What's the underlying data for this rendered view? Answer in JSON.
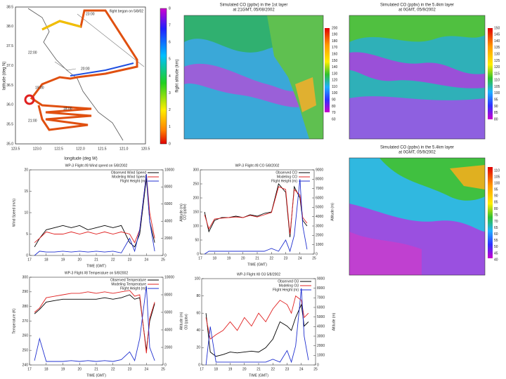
{
  "flight_map": {
    "note": "flight began on 5/8/02",
    "xlabel": "longitude (deg W)",
    "ylabel": "latitude (deg N)",
    "colorbar_label": "flight altitude (km)",
    "xticks": [
      "123.5",
      "123.0",
      "122.5",
      "122.0",
      "121.5",
      "121.0",
      "120.5"
    ],
    "yticks": [
      "38.5",
      "38.0",
      "37.5",
      "37.0",
      "36.5",
      "36.0",
      "35.5",
      "35.0"
    ],
    "colorbar_ticks": [
      "8",
      "7",
      "6",
      "5",
      "4",
      "3",
      "2",
      "1",
      "0"
    ],
    "times": [
      "23:00",
      "22:00",
      "20:00",
      "19:00",
      "18:00",
      "21:00"
    ]
  },
  "maps": [
    {
      "title": [
        "Simulated CO (ppbv) in the 1st layer",
        "at 21GMT, 05/08/2002"
      ],
      "colorbar_ticks": [
        "200",
        "190",
        "180",
        "170",
        "160",
        "150",
        "140",
        "130",
        "120",
        "110",
        "100",
        "90",
        "80",
        "70",
        "60"
      ]
    },
    {
      "title": [
        "Simulated CO (ppbv) in the 5.4km layer",
        "at 0GMT, 05/9/2002"
      ],
      "colorbar_ticks": [
        "150",
        "145",
        "140",
        "135",
        "130",
        "125",
        "120",
        "115",
        "110",
        "105",
        "100",
        "95",
        "90",
        "85",
        "80"
      ]
    },
    {
      "title": [
        "Simulated CO (ppbv) in the 5.4km layer",
        "at 0GMT, 05/9/2002"
      ],
      "colorbar_ticks": [
        "110",
        "105",
        "100",
        "95",
        "90",
        "85",
        "80",
        "75",
        "70",
        "65",
        "60",
        "55",
        "50",
        "45",
        "40"
      ]
    }
  ],
  "chart_data": [
    {
      "type": "line",
      "title": "WP-3 Flight #8 Wind speed on 5/8/2002",
      "xlabel": "TIME (GMT)",
      "ylabel": "Wind Speed (m/s)",
      "y2label": "Altitude (m)",
      "x": [
        17.3,
        17.6,
        18,
        18.5,
        19,
        19.5,
        20,
        20.5,
        21,
        21.5,
        22,
        22.5,
        23,
        23.3,
        23.6,
        24,
        24.2,
        24.5
      ],
      "xlim": [
        17,
        25
      ],
      "xticks": [
        17,
        18,
        19,
        20,
        21,
        22,
        23,
        24,
        25
      ],
      "ylim": [
        0,
        20
      ],
      "yticks": [
        0,
        5,
        10,
        15,
        20
      ],
      "y2lim": [
        0,
        10000
      ],
      "y2ticks": [
        0,
        2000,
        4000,
        6000,
        8000,
        10000
      ],
      "series": [
        {
          "name": "Observed Wind Speed",
          "color": "#000000",
          "values": [
            2,
            4,
            6,
            6.5,
            7,
            6.5,
            7,
            6,
            6.5,
            7,
            6.5,
            7,
            3,
            2,
            5,
            18,
            8,
            3
          ]
        },
        {
          "name": "Modeling Wind Speed",
          "color": "#e02020",
          "values": [
            3,
            4,
            5.5,
            5,
            5,
            5.5,
            5,
            5.5,
            5,
            5.5,
            5,
            5.5,
            5,
            3,
            6,
            19,
            10,
            4
          ]
        },
        {
          "name": "Flight Height (m)",
          "color": "#2030d0",
          "axis": "y2",
          "values": [
            0,
            500,
            400,
            400,
            500,
            400,
            500,
            400,
            500,
            400,
            500,
            300,
            2000,
            500,
            3000,
            9500,
            4000,
            500
          ]
        }
      ]
    },
    {
      "type": "line",
      "title": "WP-3 Flight #8 CO 5/8/2002",
      "xlabel": "TIME (GMT)",
      "ylabel": "CO (ppbv)",
      "y2label": "Altitude (m)",
      "x": [
        17.3,
        17.6,
        18,
        18.5,
        19,
        19.5,
        20,
        20.5,
        21,
        21.5,
        22,
        22.5,
        23,
        23.3,
        23.6,
        24,
        24.2,
        24.5
      ],
      "xlim": [
        17,
        25
      ],
      "xticks": [
        17,
        18,
        19,
        20,
        21,
        22,
        23,
        24,
        25
      ],
      "ylim": [
        0,
        300
      ],
      "yticks": [
        0,
        50,
        100,
        150,
        200,
        250,
        300
      ],
      "y2lim": [
        0,
        9000
      ],
      "y2ticks": [
        0,
        1000,
        2000,
        3000,
        4000,
        5000,
        6000,
        7000,
        8000,
        9000
      ],
      "series": [
        {
          "name": "Observed CO",
          "color": "#000000",
          "values": [
            150,
            80,
            120,
            130,
            130,
            135,
            130,
            140,
            135,
            145,
            150,
            250,
            220,
            60,
            240,
            200,
            120,
            100
          ]
        },
        {
          "name": "Modeling CO",
          "color": "#e02020",
          "values": [
            140,
            90,
            125,
            128,
            130,
            132,
            130,
            138,
            132,
            140,
            148,
            240,
            230,
            70,
            230,
            210,
            130,
            110
          ]
        },
        {
          "name": "Flight Height (m)",
          "color": "#2030d0",
          "axis": "y2",
          "values": [
            0,
            300,
            300,
            300,
            300,
            300,
            300,
            300,
            300,
            300,
            600,
            300,
            1500,
            300,
            2000,
            8000,
            3000,
            500
          ]
        }
      ]
    },
    {
      "type": "line",
      "title": "WP-3 Flight #8 Temperature on 5/8/2002",
      "xlabel": "TIME (GMT)",
      "ylabel": "Temperature (K)",
      "y2label": "Altitude (m)",
      "x": [
        17.3,
        17.6,
        18,
        18.5,
        19,
        19.5,
        20,
        20.5,
        21,
        21.5,
        22,
        22.5,
        23,
        23.3,
        23.6,
        24,
        24.2,
        24.5
      ],
      "xlim": [
        17,
        25
      ],
      "xticks": [
        17,
        18,
        19,
        20,
        21,
        22,
        23,
        24,
        25
      ],
      "ylim": [
        240,
        300
      ],
      "yticks": [
        240,
        250,
        260,
        270,
        280,
        290,
        300
      ],
      "y2lim": [
        0,
        10000
      ],
      "y2ticks": [
        0,
        2000,
        4000,
        6000,
        8000,
        10000
      ],
      "series": [
        {
          "name": "Observed Temperature",
          "color": "#000000",
          "values": [
            275,
            278,
            283,
            284,
            285,
            285,
            285,
            285,
            285,
            286,
            285,
            286,
            288,
            285,
            286,
            250,
            270,
            282
          ]
        },
        {
          "name": "Modeling Temperature",
          "color": "#e02020",
          "values": [
            276,
            279,
            286,
            287,
            288,
            289,
            289,
            290,
            289,
            290,
            289,
            290,
            291,
            287,
            288,
            248,
            272,
            283
          ]
        },
        {
          "name": "Flight Height (m)",
          "color": "#2030d0",
          "axis": "y2",
          "values": [
            500,
            3000,
            400,
            400,
            400,
            500,
            400,
            500,
            400,
            500,
            400,
            600,
            1500,
            500,
            3000,
            9000,
            2000,
            500
          ]
        }
      ]
    },
    {
      "type": "line",
      "title": "WP-3 Flight #8 O3 5/8/2002",
      "xlabel": "TIME (GMT)",
      "ylabel": "O3 (ppbv)",
      "y2label": "Altitude (m)",
      "x": [
        17.3,
        17.6,
        18,
        18.5,
        19,
        19.5,
        20,
        20.5,
        21,
        21.5,
        22,
        22.5,
        23,
        23.3,
        23.6,
        24,
        24.2,
        24.5
      ],
      "xlim": [
        17,
        25
      ],
      "xticks": [
        17,
        18,
        19,
        20,
        21,
        22,
        23,
        24,
        25
      ],
      "ylim": [
        0,
        100
      ],
      "yticks": [
        0,
        20,
        40,
        60,
        80,
        100
      ],
      "y2lim": [
        0,
        9000
      ],
      "y2ticks": [
        0,
        1000,
        2000,
        3000,
        4000,
        5000,
        6000,
        7000,
        8000,
        9000
      ],
      "series": [
        {
          "name": "Observed O3",
          "color": "#000000",
          "values": [
            60,
            15,
            10,
            12,
            15,
            14,
            15,
            16,
            15,
            20,
            30,
            50,
            45,
            40,
            55,
            70,
            45,
            50
          ]
        },
        {
          "name": "Modeling O3",
          "color": "#e02020",
          "values": [
            55,
            30,
            35,
            40,
            50,
            40,
            55,
            45,
            60,
            50,
            65,
            75,
            70,
            60,
            80,
            75,
            55,
            60
          ]
        },
        {
          "name": "Flight Height (m)",
          "color": "#2030d0",
          "axis": "y2",
          "values": [
            0,
            4000,
            300,
            300,
            300,
            300,
            300,
            300,
            300,
            300,
            600,
            300,
            1500,
            300,
            2000,
            8000,
            3000,
            500
          ]
        }
      ]
    }
  ]
}
